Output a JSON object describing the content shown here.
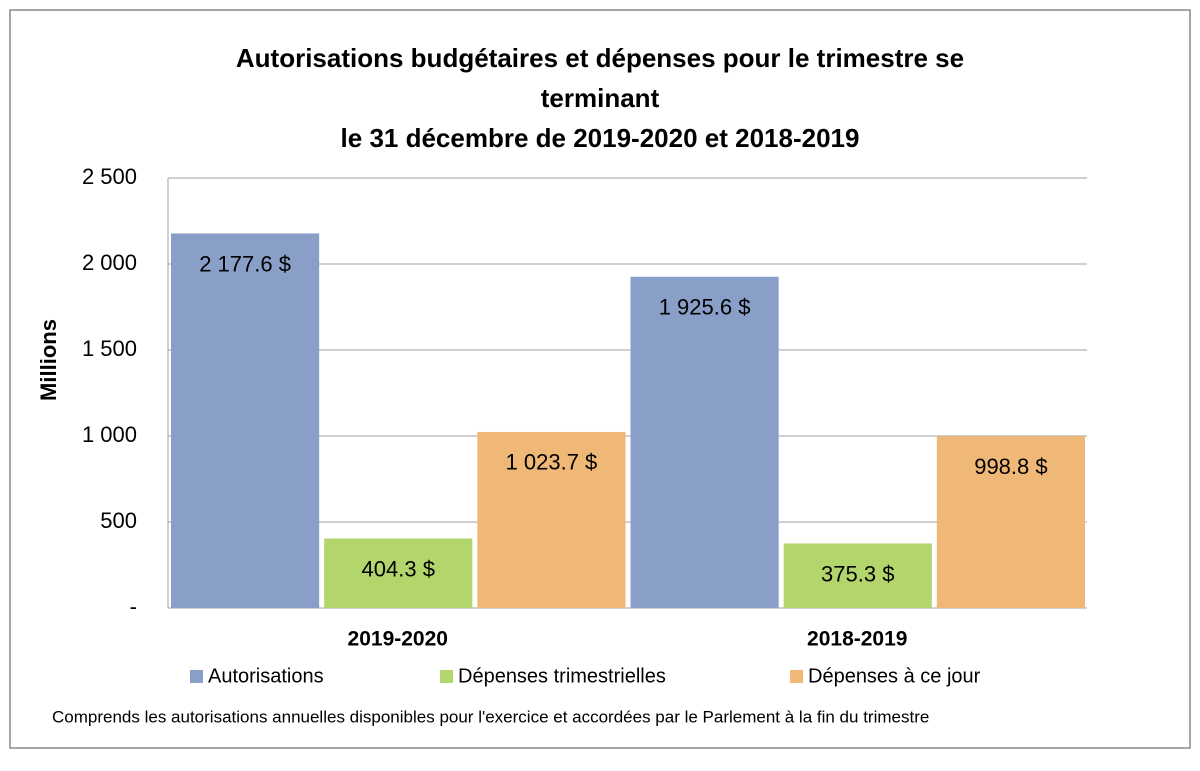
{
  "chart_data": {
    "type": "bar",
    "title": [
      "Autorisations budgétaires et dépenses pour le trimestre se",
      "terminant",
      "le 31 décembre de 2019-2020 et 2018-2019"
    ],
    "y_label": "Millions",
    "categories": [
      "2019-2020",
      "2018-2019"
    ],
    "series": [
      {
        "name": "Autorisations",
        "color": "#8a9fc7",
        "values": [
          2177.6,
          1925.6
        ],
        "value_labels": [
          "2 177.6 $",
          "1 925.6 $"
        ]
      },
      {
        "name": "Dépenses trimestrielles",
        "color": "#b3d66c",
        "values": [
          404.3,
          375.3
        ],
        "value_labels": [
          "404.3 $",
          "375.3 $"
        ]
      },
      {
        "name": "Dépenses à ce jour",
        "color": "#efb877",
        "values": [
          1023.7,
          998.8
        ],
        "value_labels": [
          "1 023.7 $",
          "998.8 $"
        ]
      }
    ],
    "ylim": [
      0,
      2500
    ],
    "yticks": [
      {
        "value": 0,
        "label": "-"
      },
      500,
      {
        "value": 1000,
        "label": "1 000"
      },
      {
        "value": 1500,
        "label": "1 500"
      },
      {
        "value": 2000,
        "label": "2 000"
      },
      {
        "value": 2500,
        "label": "2 500"
      }
    ],
    "grid": true,
    "legend": "bottom",
    "footnote": "Comprends les autorisations annuelles disponibles pour l'exercice et accordées par le Parlement à la fin du trimestre"
  }
}
